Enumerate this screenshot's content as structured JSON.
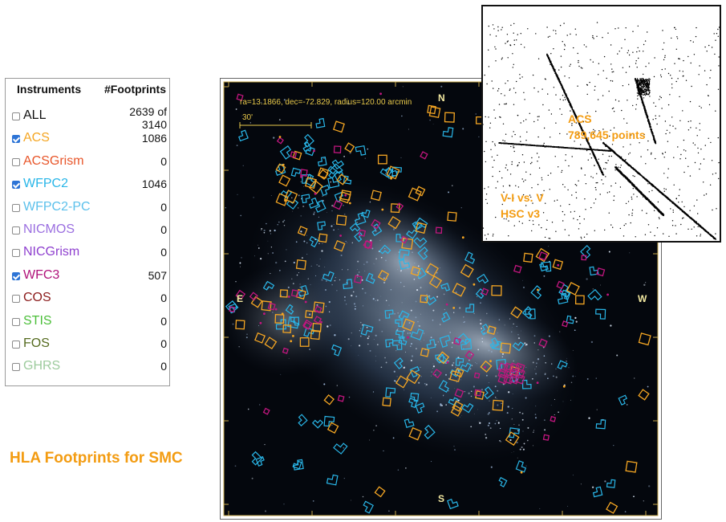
{
  "table": {
    "header": {
      "instruments": "Instruments",
      "footprints": "#Footprints"
    },
    "rows": [
      {
        "name": "ALL",
        "count": "2639 of 3140",
        "checked": false,
        "color": "#111111"
      },
      {
        "name": "ACS",
        "count": "1086",
        "checked": true,
        "color": "#f5a623"
      },
      {
        "name": "ACSGrism",
        "count": "0",
        "checked": false,
        "color": "#e8562a"
      },
      {
        "name": "WFPC2",
        "count": "1046",
        "checked": true,
        "color": "#29b6e8"
      },
      {
        "name": "WFPC2-PC",
        "count": "0",
        "checked": false,
        "color": "#5bc0eb"
      },
      {
        "name": "NICMOS",
        "count": "0",
        "checked": false,
        "color": "#9b6fe0"
      },
      {
        "name": "NICGrism",
        "count": "0",
        "checked": false,
        "color": "#8e3fcf"
      },
      {
        "name": "WFC3",
        "count": "507",
        "checked": true,
        "color": "#b0127a"
      },
      {
        "name": "COS",
        "count": "0",
        "checked": false,
        "color": "#8b1a1a"
      },
      {
        "name": "STIS",
        "count": "0",
        "checked": false,
        "color": "#4cbf3a"
      },
      {
        "name": "FOS",
        "count": "0",
        "checked": false,
        "color": "#556b1f"
      },
      {
        "name": "GHRS",
        "count": "0",
        "checked": false,
        "color": "#9dcb9d"
      }
    ]
  },
  "caption": "HLA Footprints for SMC",
  "sky": {
    "coords": "ra=13.1866, dec=-72.829, radius=120.00 arcmin",
    "scale_label": "30'",
    "north": "N",
    "south": "S",
    "east": "E",
    "west": "W"
  },
  "cmd": {
    "label": "ACS",
    "points": "789,645 points",
    "axes": "V-I vs. V",
    "version": "HSC v3"
  }
}
